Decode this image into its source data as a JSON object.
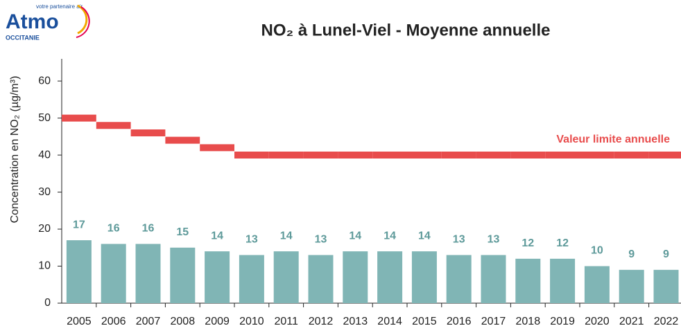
{
  "logo": {
    "name": "Atmo",
    "tagline": "votre partenaire air",
    "region": "OCCITANIE"
  },
  "chart_data": {
    "type": "bar",
    "title": "NO₂ à Lunel-Viel  - Moyenne annuelle",
    "y_label": "Concentration en NO₂ (µg/m³)",
    "categories": [
      "2005",
      "2006",
      "2007",
      "2008",
      "2009",
      "2010",
      "2011",
      "2012",
      "2013",
      "2014",
      "2015",
      "2016",
      "2017",
      "2018",
      "2019",
      "2020",
      "2021",
      "2022"
    ],
    "values": [
      17,
      16,
      16,
      15,
      14,
      13,
      14,
      13,
      14,
      14,
      14,
      13,
      13,
      12,
      12,
      10,
      9,
      9
    ],
    "color": "#80b5b5",
    "label_color": "#5e9a9a",
    "series": [
      {
        "name": "Valeur limite annuelle",
        "color": "#e84c4c",
        "values": [
          50,
          48,
          46,
          44,
          42,
          40,
          40,
          40,
          40,
          40,
          40,
          40,
          40,
          40,
          40,
          40,
          40,
          40
        ]
      }
    ],
    "ylim": [
      0,
      66
    ],
    "yticks": [
      0,
      10,
      20,
      30,
      40,
      50,
      60
    ],
    "grid": false
  }
}
